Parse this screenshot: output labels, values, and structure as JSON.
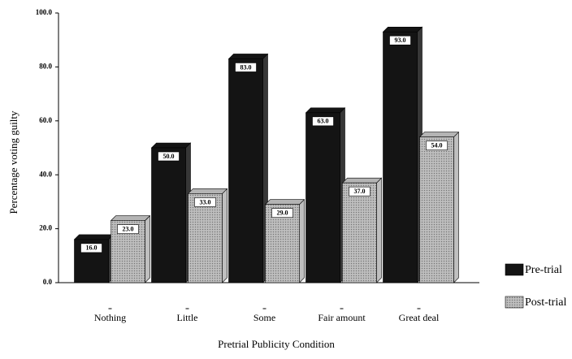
{
  "chart_data": {
    "type": "bar3d",
    "x_label": "Pretrial Publicity Condition",
    "y_label": "Percentage voting guilty",
    "categories": [
      "Nothing",
      "Little",
      "Some",
      "Fair amount",
      "Great deal"
    ],
    "series": [
      {
        "name": "Pre-trial",
        "color": "#141414",
        "values": [
          16,
          50,
          83,
          63,
          93
        ],
        "value_labels": [
          "16.0",
          "50.0",
          "83.0",
          "63.0",
          "93.0"
        ]
      },
      {
        "name": "Post-trial",
        "color": "#b4b4b4",
        "values": [
          23,
          33,
          29,
          37,
          54
        ],
        "value_labels": [
          "23.0",
          "33.0",
          "29.0",
          "37.0",
          "54.0"
        ]
      }
    ],
    "ylim": [
      0,
      100
    ],
    "yticks": [
      {
        "value": 0,
        "label": "0.0"
      },
      {
        "value": 20,
        "label": "20.0"
      },
      {
        "value": 40,
        "label": "40.0"
      },
      {
        "value": 60,
        "label": "60.0"
      },
      {
        "value": 80,
        "label": "80.0"
      },
      {
        "value": 100,
        "label": "100.0"
      }
    ],
    "legend": "right"
  }
}
